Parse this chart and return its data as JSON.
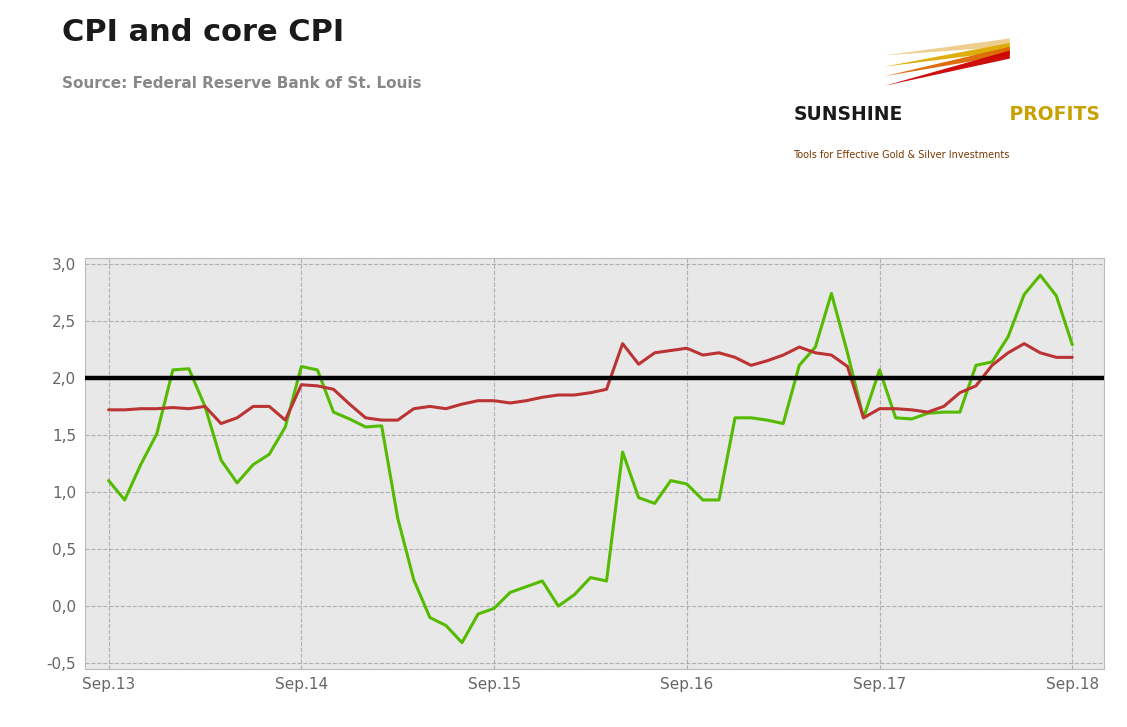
{
  "title": "CPI and core CPI",
  "source": "Source: Federal Reserve Bank of St. Louis",
  "background_color": "#e8e8e8",
  "outer_background": "#ffffff",
  "grid_color": "#aaaaaa",
  "reference_line": 2.0,
  "cpi_color": "#55bb00",
  "core_cpi_color": "#bb3333",
  "ylim": [
    -0.5,
    3.0
  ],
  "yticks": [
    -0.5,
    0.0,
    0.5,
    1.0,
    1.5,
    2.0,
    2.5,
    3.0
  ],
  "ytick_labels": [
    "-0,5",
    "0,0",
    "0,5",
    "1,0",
    "1,5",
    "2,0",
    "2,5",
    "3,0"
  ],
  "xtick_labels": [
    "Sep.13",
    "Sep.14",
    "Sep.15",
    "Sep.16",
    "Sep.17",
    "Sep.18"
  ],
  "xtick_positions": [
    0,
    12,
    24,
    36,
    48,
    60
  ],
  "n_months": 61,
  "cpi_values": [
    1.1,
    0.93,
    1.24,
    1.51,
    2.07,
    2.08,
    1.75,
    1.28,
    1.08,
    1.24,
    1.33,
    1.57,
    2.1,
    2.07,
    1.7,
    1.64,
    1.57,
    1.58,
    0.77,
    0.23,
    -0.1,
    -0.17,
    -0.32,
    -0.07,
    -0.02,
    0.12,
    0.17,
    0.22,
    0.0,
    0.1,
    0.25,
    0.22,
    1.35,
    0.95,
    0.9,
    1.1,
    1.07,
    0.93,
    0.93,
    1.65,
    1.65,
    1.63,
    1.6,
    2.11,
    2.27,
    2.74,
    2.22,
    1.65,
    2.07,
    1.65,
    1.64,
    1.69,
    1.7,
    1.7,
    2.11,
    2.14,
    2.36,
    2.73,
    2.9,
    2.72,
    2.29
  ],
  "core_cpi_values": [
    1.72,
    1.72,
    1.73,
    1.73,
    1.74,
    1.73,
    1.75,
    1.6,
    1.65,
    1.75,
    1.75,
    1.63,
    1.94,
    1.93,
    1.9,
    1.77,
    1.65,
    1.63,
    1.63,
    1.73,
    1.75,
    1.73,
    1.77,
    1.8,
    1.8,
    1.78,
    1.8,
    1.83,
    1.85,
    1.85,
    1.87,
    1.9,
    2.3,
    2.12,
    2.22,
    2.24,
    2.26,
    2.2,
    2.22,
    2.18,
    2.11,
    2.15,
    2.2,
    2.27,
    2.22,
    2.2,
    2.1,
    1.65,
    1.73,
    1.73,
    1.72,
    1.7,
    1.75,
    1.87,
    1.93,
    2.11,
    2.22,
    2.3,
    2.22,
    2.18,
    2.18
  ],
  "logo_sunshine_color": "#1a1a1a",
  "logo_profits_color": "#c8a000",
  "logo_tagline_color": "#7a3800",
  "title_fontsize": 22,
  "source_fontsize": 11,
  "tick_fontsize": 11
}
